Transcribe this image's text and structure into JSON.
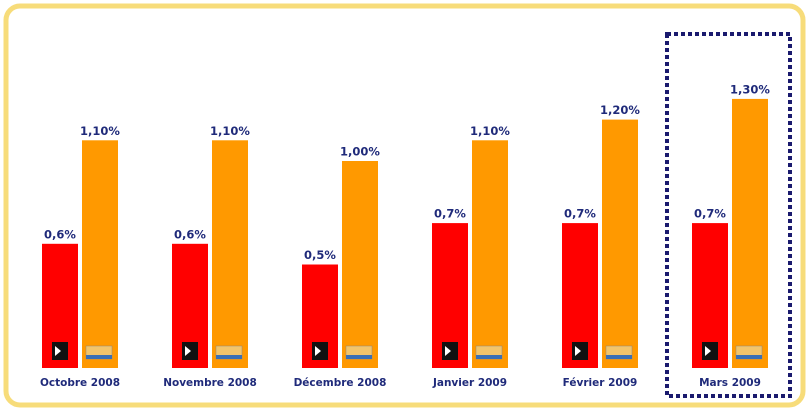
{
  "chart_data": {
    "type": "bar",
    "categories": [
      "Octobre 2008",
      "Novembre 2008",
      "Décembre 2008",
      "Janvier 2009",
      "Février 2009",
      "Mars 2009"
    ],
    "series": [
      {
        "color": "#ff0000",
        "values": [
          0.6,
          0.6,
          0.5,
          0.7,
          0.7,
          0.7
        ],
        "value_labels": [
          "0,6%",
          "0,6%",
          "0,5%",
          "0,7%",
          "0,7%",
          "0,7%"
        ]
      },
      {
        "color": "#ff9900",
        "values": [
          1.1,
          1.1,
          1.0,
          1.1,
          1.2,
          1.3
        ],
        "value_labels": [
          "1,10%",
          "1,10%",
          "1,00%",
          "1,10%",
          "1,20%",
          "1,30%"
        ]
      }
    ]
  }
}
